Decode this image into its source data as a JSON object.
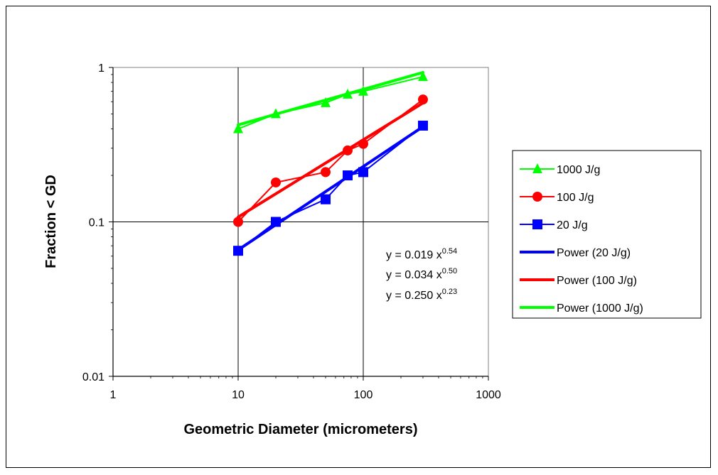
{
  "chart_data": {
    "type": "line",
    "xscale": "log",
    "yscale": "log",
    "xlim": [
      1,
      1000
    ],
    "ylim": [
      0.01,
      1
    ],
    "xticks": [
      "1",
      "10",
      "100",
      "1000"
    ],
    "yticks": [
      "0.01",
      "0.1",
      "1"
    ],
    "xlabel": "Geometric Diameter (micrometers)",
    "ylabel": "Fraction < GD",
    "grid": true,
    "legend_position": "right",
    "series": [
      {
        "name": "1000 J/g",
        "marker": "triangle",
        "color": "#00ff00",
        "x": [
          10,
          20,
          50,
          75,
          100,
          300
        ],
        "y": [
          0.4,
          0.5,
          0.59,
          0.67,
          0.7,
          0.87
        ]
      },
      {
        "name": "100 J/g",
        "marker": "circle",
        "color": "#ff0000",
        "x": [
          10,
          20,
          50,
          75,
          100,
          300
        ],
        "y": [
          0.1,
          0.18,
          0.21,
          0.29,
          0.32,
          0.62
        ]
      },
      {
        "name": "20 J/g",
        "marker": "square",
        "color": "#0000ff",
        "x": [
          10,
          20,
          50,
          75,
          100,
          300
        ],
        "y": [
          0.065,
          0.1,
          0.14,
          0.2,
          0.21,
          0.42
        ]
      }
    ],
    "fits": [
      {
        "name": "Power (20 J/g)",
        "color": "#0000ff",
        "a": 0.019,
        "b": 0.54,
        "x_range": [
          10,
          300
        ]
      },
      {
        "name": "Power (100 J/g)",
        "color": "#ff0000",
        "a": 0.034,
        "b": 0.5,
        "x_range": [
          10,
          300
        ]
      },
      {
        "name": "Power (1000 J/g)",
        "color": "#00ff00",
        "a": 0.25,
        "b": 0.23,
        "x_range": [
          10,
          300
        ]
      }
    ],
    "equations": [
      {
        "base": "y = 0.019 x",
        "exp": "0.54"
      },
      {
        "base": "y = 0.034 x",
        "exp": "0.50"
      },
      {
        "base": "y = 0.250 x",
        "exp": "0.23"
      }
    ]
  }
}
